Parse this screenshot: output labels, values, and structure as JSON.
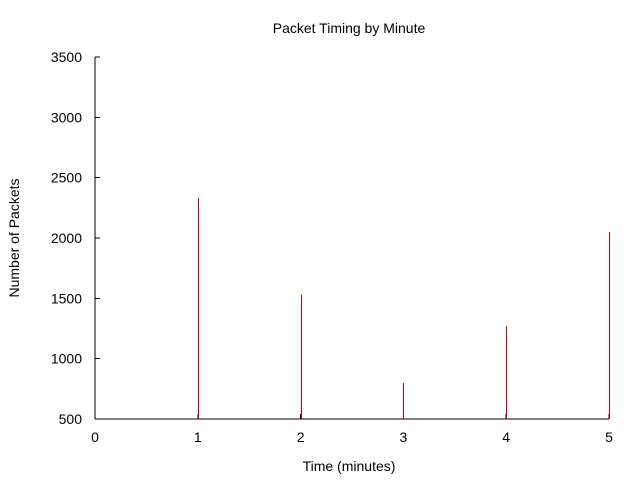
{
  "chart_data": {
    "type": "bar",
    "style": "impulses",
    "title": "Packet Timing by Minute",
    "xlabel": "Time (minutes)",
    "ylabel": "Number of Packets",
    "xlim": [
      0,
      5
    ],
    "ylim": [
      500,
      3500
    ],
    "x_ticks": [
      "0",
      "1",
      "2",
      "3",
      "4",
      "5"
    ],
    "y_ticks": [
      "500",
      "1000",
      "1500",
      "2000",
      "2500",
      "3000",
      "3500"
    ],
    "x": [
      1,
      2,
      3,
      4,
      5
    ],
    "values": [
      2330,
      1530,
      800,
      1270,
      2050
    ],
    "series_color": "#cc0000",
    "grid": false,
    "legend": "none"
  }
}
